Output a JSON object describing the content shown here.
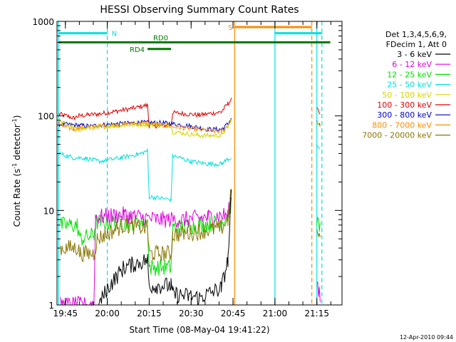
{
  "chart_data": {
    "type": "line",
    "title": "HESSI Observing Summary Count Rates",
    "xlabel": "Start Time (08-May-04 19:41:22)",
    "ylabel_main": "Count Rate (s",
    "ylabel_sup1": "-1",
    "ylabel_mid": " detector",
    "ylabel_sup2": "-1",
    "ylabel_end": ")",
    "y_scale": "log",
    "ylim": [
      1,
      1000
    ],
    "xlim_minutes": [
      19.7,
      21.4
    ],
    "x_ticks": [
      {
        "label": "19:45",
        "t": 19.75
      },
      {
        "label": "20:00",
        "t": 20.0
      },
      {
        "label": "20:15",
        "t": 20.25
      },
      {
        "label": "20:30",
        "t": 20.5
      },
      {
        "label": "20:45",
        "t": 20.75
      },
      {
        "label": "21:00",
        "t": 21.0
      },
      {
        "label": "21:15",
        "t": 21.25
      }
    ],
    "y_ticks": [
      {
        "label": "1",
        "v": 1
      },
      {
        "label": "10",
        "v": 10
      },
      {
        "label": "100",
        "v": 100
      },
      {
        "label": "1000",
        "v": 1000
      }
    ],
    "timestamp": "12-Apr-2010 09:44",
    "legend": {
      "header1": "Det 1,3,4,5,6,9,",
      "header2": "FDecim 1, Att 0",
      "placement": "right",
      "entries": [
        {
          "label": "3 - 6 keV",
          "color": "#000000"
        },
        {
          "label": "6 - 12 keV",
          "color": "#e000e0"
        },
        {
          "label": "12 - 25 keV",
          "color": "#00e000"
        },
        {
          "label": "25 - 50 keV",
          "color": "#00e0e0"
        },
        {
          "label": "50 - 100 keV",
          "color": "#d4d400"
        },
        {
          "label": "100 - 300 keV",
          "color": "#e00000"
        },
        {
          "label": "300 - 800 keV",
          "color": "#0000c8"
        },
        {
          "label": "800 - 7000 keV",
          "color": "#ff8c00"
        },
        {
          "label": "7000 - 20000 keV",
          "color": "#8b7500"
        }
      ]
    },
    "flags": {
      "night_label": "N",
      "saa_label": "S",
      "rd0_label": "RD0",
      "rd4_label": "RD4",
      "night_color": "#00e0e0",
      "saa_color": "#ff8c00",
      "rd_color": "#007800"
    },
    "series": [
      {
        "color": "#e00000",
        "points": [
          [
            19.71,
            105
          ],
          [
            19.8,
            95
          ],
          [
            19.83,
            100
          ],
          [
            19.95,
            105
          ],
          [
            20.05,
            112
          ],
          [
            20.15,
            120
          ],
          [
            20.24,
            130
          ],
          [
            20.25,
            78
          ],
          [
            20.38,
            80
          ],
          [
            20.39,
            108
          ],
          [
            20.55,
            102
          ],
          [
            20.68,
            110
          ],
          [
            20.72,
            135
          ],
          [
            20.74,
            148
          ]
        ]
      },
      {
        "color": "#0000c8",
        "points": [
          [
            19.71,
            82
          ],
          [
            19.9,
            78
          ],
          [
            19.96,
            80
          ],
          [
            20.05,
            82
          ],
          [
            20.2,
            85
          ],
          [
            20.35,
            84
          ],
          [
            20.5,
            78
          ],
          [
            20.6,
            72
          ],
          [
            20.68,
            72
          ],
          [
            20.72,
            82
          ],
          [
            20.74,
            95
          ]
        ]
      },
      {
        "color": "#ff8c00",
        "points": [
          [
            19.71,
            80
          ],
          [
            19.8,
            72
          ],
          [
            19.83,
            74
          ],
          [
            19.95,
            78
          ],
          [
            20.1,
            82
          ],
          [
            20.2,
            84
          ],
          [
            20.3,
            80
          ],
          [
            20.45,
            75
          ],
          [
            20.6,
            70
          ],
          [
            20.68,
            68
          ],
          [
            20.72,
            78
          ],
          [
            20.74,
            92
          ]
        ]
      },
      {
        "color": "#d4d400",
        "points": [
          [
            19.71,
            88
          ],
          [
            19.8,
            75
          ],
          [
            19.83,
            72
          ],
          [
            19.95,
            76
          ],
          [
            20.1,
            80
          ],
          [
            20.24,
            82
          ],
          [
            20.25,
            82
          ],
          [
            20.38,
            80
          ],
          [
            20.39,
            68
          ],
          [
            20.55,
            62
          ],
          [
            20.68,
            62
          ],
          [
            20.72,
            78
          ],
          [
            20.74,
            90
          ]
        ]
      },
      {
        "color": "#00e0e0",
        "points": [
          [
            19.71,
            40
          ],
          [
            19.8,
            36
          ],
          [
            19.86,
            36
          ],
          [
            19.95,
            33
          ],
          [
            20.08,
            36
          ],
          [
            20.2,
            40
          ],
          [
            20.24,
            43
          ],
          [
            20.25,
            14
          ],
          [
            20.38,
            13
          ],
          [
            20.39,
            38
          ],
          [
            20.5,
            33
          ],
          [
            20.6,
            31
          ],
          [
            20.68,
            31
          ],
          [
            20.72,
            35
          ],
          [
            20.74,
            36
          ]
        ]
      },
      {
        "color": "#00e000",
        "points": [
          [
            19.72,
            7
          ],
          [
            19.82,
            7
          ],
          [
            19.84,
            5
          ],
          [
            19.92,
            5.5
          ],
          [
            19.93,
            7.5
          ],
          [
            20.1,
            7.5
          ],
          [
            20.24,
            7.5
          ],
          [
            20.25,
            2.5
          ],
          [
            20.38,
            2.5
          ],
          [
            20.39,
            6.5
          ],
          [
            20.55,
            7
          ],
          [
            20.68,
            7.5
          ],
          [
            20.72,
            9
          ],
          [
            20.74,
            12
          ]
        ]
      },
      {
        "color": "#e000e0",
        "points": [
          [
            19.72,
            1
          ],
          [
            19.8,
            1
          ],
          [
            19.92,
            1
          ],
          [
            19.93,
            8.5
          ],
          [
            20.1,
            9
          ],
          [
            20.3,
            8
          ],
          [
            20.45,
            8
          ],
          [
            20.6,
            8.5
          ],
          [
            20.72,
            9
          ],
          [
            20.74,
            14
          ]
        ]
      },
      {
        "color": "#8b7500",
        "points": [
          [
            19.72,
            4
          ],
          [
            19.82,
            4
          ],
          [
            19.84,
            3.5
          ],
          [
            19.92,
            3.5
          ],
          [
            19.94,
            5
          ],
          [
            20.1,
            7
          ],
          [
            20.24,
            6.5
          ],
          [
            20.25,
            3.5
          ],
          [
            20.38,
            3.5
          ],
          [
            20.39,
            5.5
          ],
          [
            20.55,
            6
          ],
          [
            20.68,
            6.5
          ],
          [
            20.72,
            8
          ],
          [
            20.74,
            16
          ]
        ]
      },
      {
        "color": "#000000",
        "points": [
          [
            19.95,
            1
          ],
          [
            20.0,
            1.5
          ],
          [
            20.1,
            2.5
          ],
          [
            20.24,
            3
          ],
          [
            20.25,
            1.6
          ],
          [
            20.38,
            1.6
          ],
          [
            20.39,
            1.3
          ],
          [
            20.55,
            1.2
          ],
          [
            20.68,
            1.5
          ],
          [
            20.72,
            3
          ],
          [
            20.74,
            15
          ]
        ]
      }
    ],
    "tail_series": [
      {
        "color": "#e00000",
        "points": [
          [
            21.25,
            118
          ],
          [
            21.27,
            110
          ]
        ]
      },
      {
        "color": "#0000c8",
        "points": [
          [
            21.25,
            85
          ],
          [
            21.27,
            82
          ]
        ]
      },
      {
        "color": "#ff8c00",
        "points": [
          [
            21.25,
            85
          ],
          [
            21.27,
            80
          ]
        ]
      },
      {
        "color": "#d4d400",
        "points": [
          [
            21.25,
            85
          ],
          [
            21.27,
            82
          ]
        ]
      },
      {
        "color": "#00e0e0",
        "points": [
          [
            21.25,
            48
          ],
          [
            21.27,
            45
          ]
        ]
      },
      {
        "color": "#00e000",
        "points": [
          [
            21.25,
            7.5
          ],
          [
            21.27,
            7
          ]
        ]
      },
      {
        "color": "#8b7500",
        "points": [
          [
            21.25,
            6.5
          ],
          [
            21.27,
            6
          ]
        ]
      },
      {
        "color": "#e000e0",
        "points": [
          [
            21.25,
            1.5
          ],
          [
            21.27,
            1.2
          ]
        ]
      }
    ],
    "vertical_lines": [
      {
        "t": 19.71,
        "color": "#00e0e0",
        "dash": false
      },
      {
        "t": 20.0,
        "color": "#00e0e0",
        "dash": true
      },
      {
        "t": 20.76,
        "color": "#ff8c00",
        "dash": false
      },
      {
        "t": 21.0,
        "color": "#00e0e0",
        "dash": false
      },
      {
        "t": 21.22,
        "color": "#ff8c00",
        "dash": true
      },
      {
        "t": 21.25,
        "color": "#00e0e0",
        "dash": false
      },
      {
        "t": 21.28,
        "color": "#00e0e0",
        "dash": true
      }
    ],
    "flag_bars": [
      {
        "type": "night",
        "t0": 19.71,
        "t1": 20.0,
        "v": 750
      },
      {
        "type": "night",
        "t0": 21.0,
        "t1": 21.28,
        "v": 750
      },
      {
        "type": "saa",
        "t0": 20.76,
        "t1": 21.22,
        "v": 870
      },
      {
        "type": "rd0",
        "t0": 19.71,
        "t1": 21.33,
        "v": 600
      },
      {
        "type": "rd4",
        "t0": 20.24,
        "t1": 20.38,
        "v": 510
      }
    ]
  }
}
